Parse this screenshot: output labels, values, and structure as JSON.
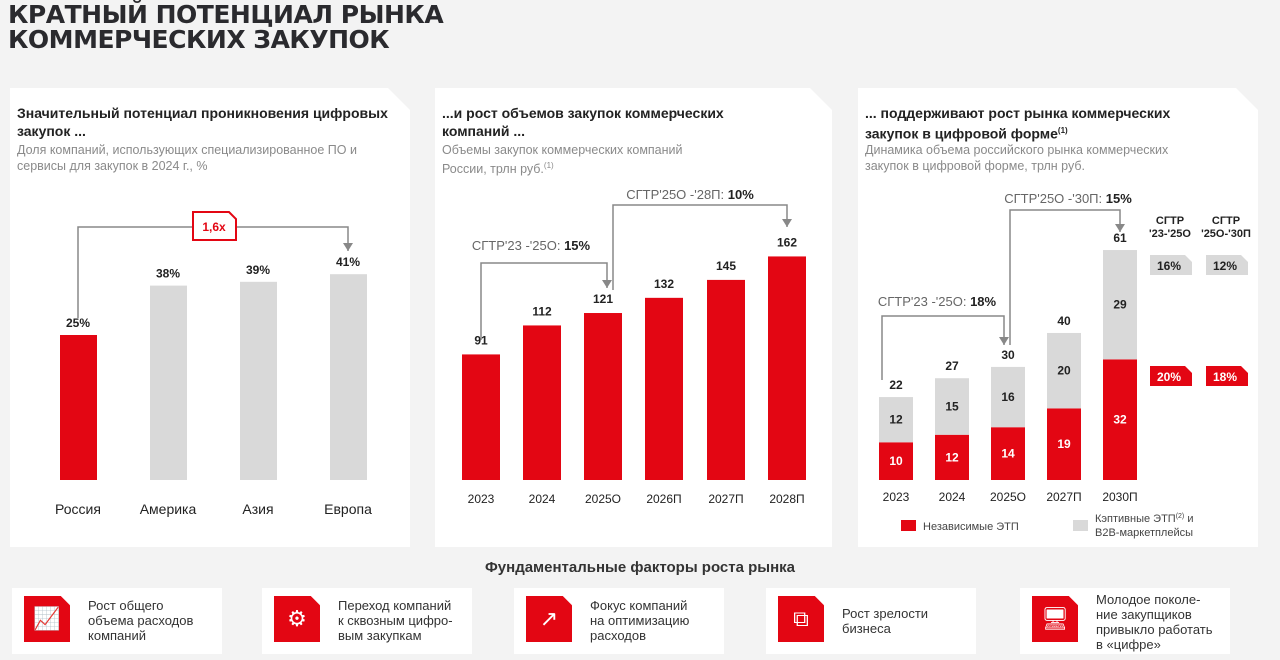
{
  "title_line1": "КРАТНЫЙ ПОТЕНЦИАЛ РЫНКА",
  "title_line2": "КОММЕРЧЕСКИХ ЗАКУПОК",
  "panels": [
    {
      "heading": "Значительный потенциал проникновения цифровых закупок ...",
      "subtitle": "Доля компаний, использующих специализированное ПО и сервисы для закупок в 2024 г., %"
    },
    {
      "heading": "...и рост объемов закупок коммерческих компаний ...",
      "subtitle": "Объемы закупок коммерческих компаний России, трлн руб.",
      "sub_note": "(1)"
    },
    {
      "heading": "... поддерживают рост рынка коммерческих закупок в цифровой форме",
      "heading_note": "(1)",
      "subtitle": "Динамика объема российского рынка коммерческих закупок в цифровой форме, трлн руб."
    }
  ],
  "chart_data": [
    {
      "type": "bar",
      "categories": [
        "Россия",
        "Америка",
        "Азия",
        "Европа"
      ],
      "values": [
        25,
        38,
        39,
        41
      ],
      "labels": [
        "25%",
        "38%",
        "39%",
        "41%"
      ],
      "highlight": [
        true,
        false,
        false,
        false
      ],
      "annotation": "1,6x"
    },
    {
      "type": "bar",
      "categories": [
        "2023",
        "2024",
        "2025О",
        "2026П",
        "2027П",
        "2028П"
      ],
      "values": [
        91,
        112,
        121,
        132,
        145,
        162
      ],
      "labels": [
        "91",
        "112",
        "121",
        "132",
        "145",
        "162"
      ],
      "annotations": [
        {
          "label": "СГТР'23 -'25О: ",
          "value": "15%"
        },
        {
          "label": "СГТР'25О -'28П: ",
          "value": "10%"
        }
      ]
    },
    {
      "type": "bar",
      "stacked": true,
      "categories": [
        "2023",
        "2024",
        "2025О",
        "2027П",
        "2030П"
      ],
      "totals": [
        22,
        27,
        30,
        40,
        61
      ],
      "series": [
        {
          "name": "Независимые ЭТП",
          "values": [
            10,
            12,
            14,
            19,
            32
          ]
        },
        {
          "name": "Кэптивные ЭТП и B2B-маркетплейсы",
          "name_note": "(2)",
          "values": [
            12,
            15,
            16,
            20,
            29
          ]
        }
      ],
      "annotations": [
        {
          "label": "СГТР'23 -'25О: ",
          "value": "18%"
        },
        {
          "label": "СГТР'25О -'30П: ",
          "value": "15%"
        }
      ],
      "cagr_headers": [
        "СГТР\n'23-'25О",
        "СГТР\n'25О-'30П"
      ],
      "cagr_captive": [
        "16%",
        "12%"
      ],
      "cagr_independent": [
        "20%",
        "18%"
      ]
    }
  ],
  "colors": {
    "red": "#e30613",
    "gray": "#d9d9d9"
  },
  "factors_title": "Фундаментальные факторы роста рынка",
  "factors": [
    {
      "icon": "growth-chart-icon",
      "text": "Рост общего\nобъема расходов\nкомпаний"
    },
    {
      "icon": "digital-gear-icon",
      "text": "Переход компаний\nк сквозным цифро-\nвым закупкам"
    },
    {
      "icon": "cost-optimization-icon",
      "text": "Фокус компаний\nна оптимизацию\nрасходов"
    },
    {
      "icon": "business-maturity-icon",
      "text": "Рост зрелости\nбизнеса"
    },
    {
      "icon": "computer-settings-icon",
      "text": "Молодое поколе-\nние закупщиков\nпривыкло работать\nв «цифре»"
    }
  ]
}
